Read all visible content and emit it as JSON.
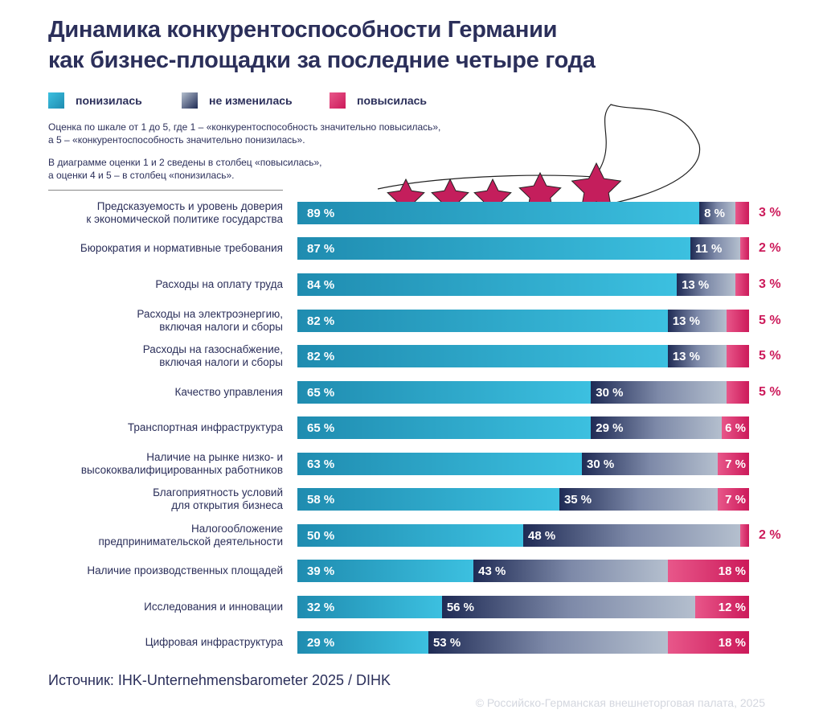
{
  "title_line1": "Динамика конкурентоспособности Германии",
  "title_line2": "как бизнес-площадки за последние четыре года",
  "legend": [
    {
      "label": "понизилась",
      "color": "#2aa6cc"
    },
    {
      "label": "не изменилась",
      "color": "#4a5578"
    },
    {
      "label": "повысилась",
      "color": "#d9306c"
    }
  ],
  "note1_line1": "Оценка по шкале от 1 до 5, где 1 – «конкурентоспособность значительно повысилась»,",
  "note1_line2": "а 5 – «конкурентоспособность значительно понизилась».",
  "note2_line1": "В диаграмме оценки 1 и 2 сведены в столбец «повысилась»,",
  "note2_line2": "а оценки 4 и 5 – в столбец «понизилась».",
  "source": "Источник: IHK-Unternehmensbarometer 2025 / DIHK",
  "copyright": "© Российско-Германская внешнеторговая палата, 2025",
  "chart_data": {
    "type": "bar",
    "orientation": "horizontal",
    "stacked": true,
    "unit": "%",
    "categories": [
      [
        "Предсказуемость и уровень доверия",
        "к экономической политике государства"
      ],
      [
        "Бюрократия и нормативные требования"
      ],
      [
        "Расходы на оплату труда"
      ],
      [
        "Расходы на электроэнергию,",
        "включая налоги и сборы"
      ],
      [
        "Расходы на газоснабжение,",
        "включая налоги и сборы"
      ],
      [
        "Качество управления"
      ],
      [
        "Транспортная инфраструктура"
      ],
      [
        "Наличие на рынке низко- и",
        "высококвалифицированных работников"
      ],
      [
        "Благоприятность условий",
        "для открытия бизнеса"
      ],
      [
        "Налогообложение",
        "предпринимательской деятельности"
      ],
      [
        "Наличие производственных площадей"
      ],
      [
        "Исследования и инновации"
      ],
      [
        "Цифровая инфраструктура"
      ]
    ],
    "series": [
      {
        "name": "понизилась",
        "values": [
          89,
          87,
          84,
          82,
          82,
          65,
          65,
          63,
          58,
          50,
          39,
          32,
          29
        ]
      },
      {
        "name": "не изменилась",
        "values": [
          8,
          11,
          13,
          13,
          13,
          30,
          29,
          30,
          35,
          48,
          43,
          56,
          53
        ]
      },
      {
        "name": "повысилась",
        "values": [
          3,
          2,
          3,
          5,
          5,
          5,
          6,
          7,
          7,
          2,
          18,
          12,
          18
        ]
      }
    ]
  }
}
